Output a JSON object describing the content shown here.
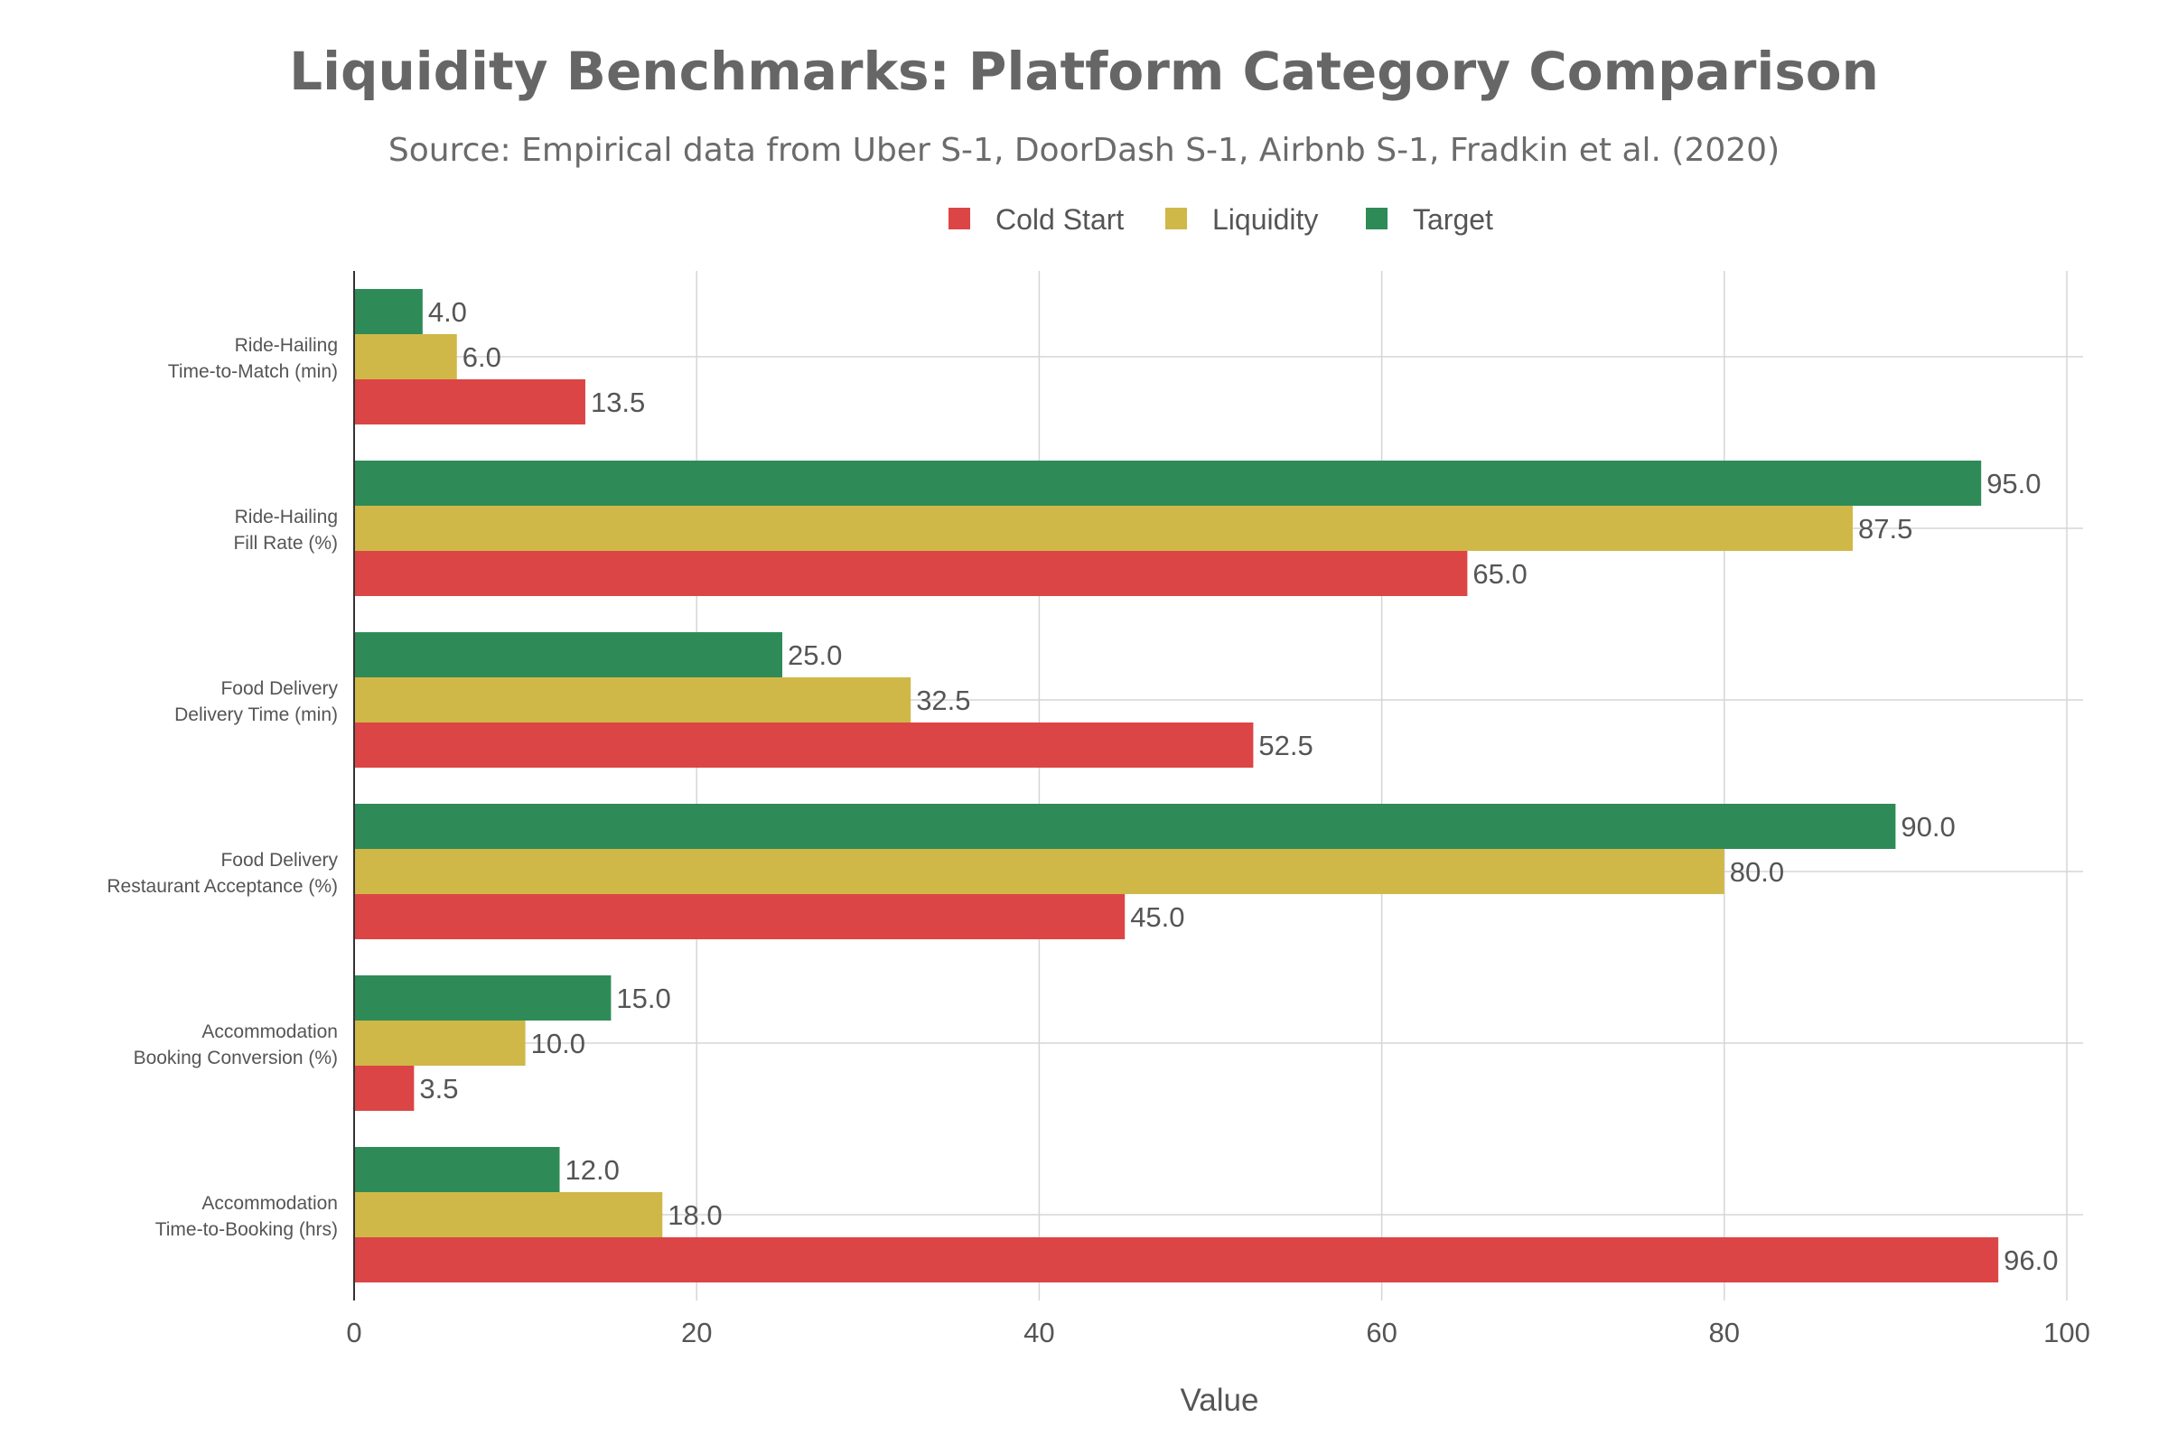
{
  "chart_data": {
    "type": "bar",
    "orientation": "horizontal",
    "title": "Liquidity Benchmarks: Platform Category Comparison",
    "subtitle": "Source: Empirical data from Uber S-1, DoorDash S-1, Airbnb S-1, Fradkin et al. (2020)",
    "xlabel": "Value",
    "ylabel": "",
    "xlim": [
      0,
      100
    ],
    "xticks": [
      "0",
      "20",
      "40",
      "60",
      "80",
      "100"
    ],
    "grid": true,
    "legend_position": "top-center",
    "categories": [
      [
        "Ride-Hailing",
        "Time-to-Match (min)"
      ],
      [
        "Ride-Hailing",
        "Fill Rate (%)"
      ],
      [
        "Food Delivery",
        "Delivery Time (min)"
      ],
      [
        "Food Delivery",
        "Restaurant Acceptance (%)"
      ],
      [
        "Accommodation",
        "Booking Conversion (%)"
      ],
      [
        "Accommodation",
        "Time-to-Booking (hrs)"
      ]
    ],
    "series": [
      {
        "name": "Cold Start",
        "color": "#dc4545",
        "values": [
          13.5,
          65.0,
          52.5,
          45.0,
          3.5,
          96.0
        ]
      },
      {
        "name": "Liquidity",
        "color": "#d0b848",
        "values": [
          6.0,
          87.5,
          32.5,
          80.0,
          10.0,
          18.0
        ]
      },
      {
        "name": "Target",
        "color": "#2e8b57",
        "values": [
          4.0,
          95.0,
          25.0,
          90.0,
          15.0,
          12.0
        ]
      }
    ]
  }
}
